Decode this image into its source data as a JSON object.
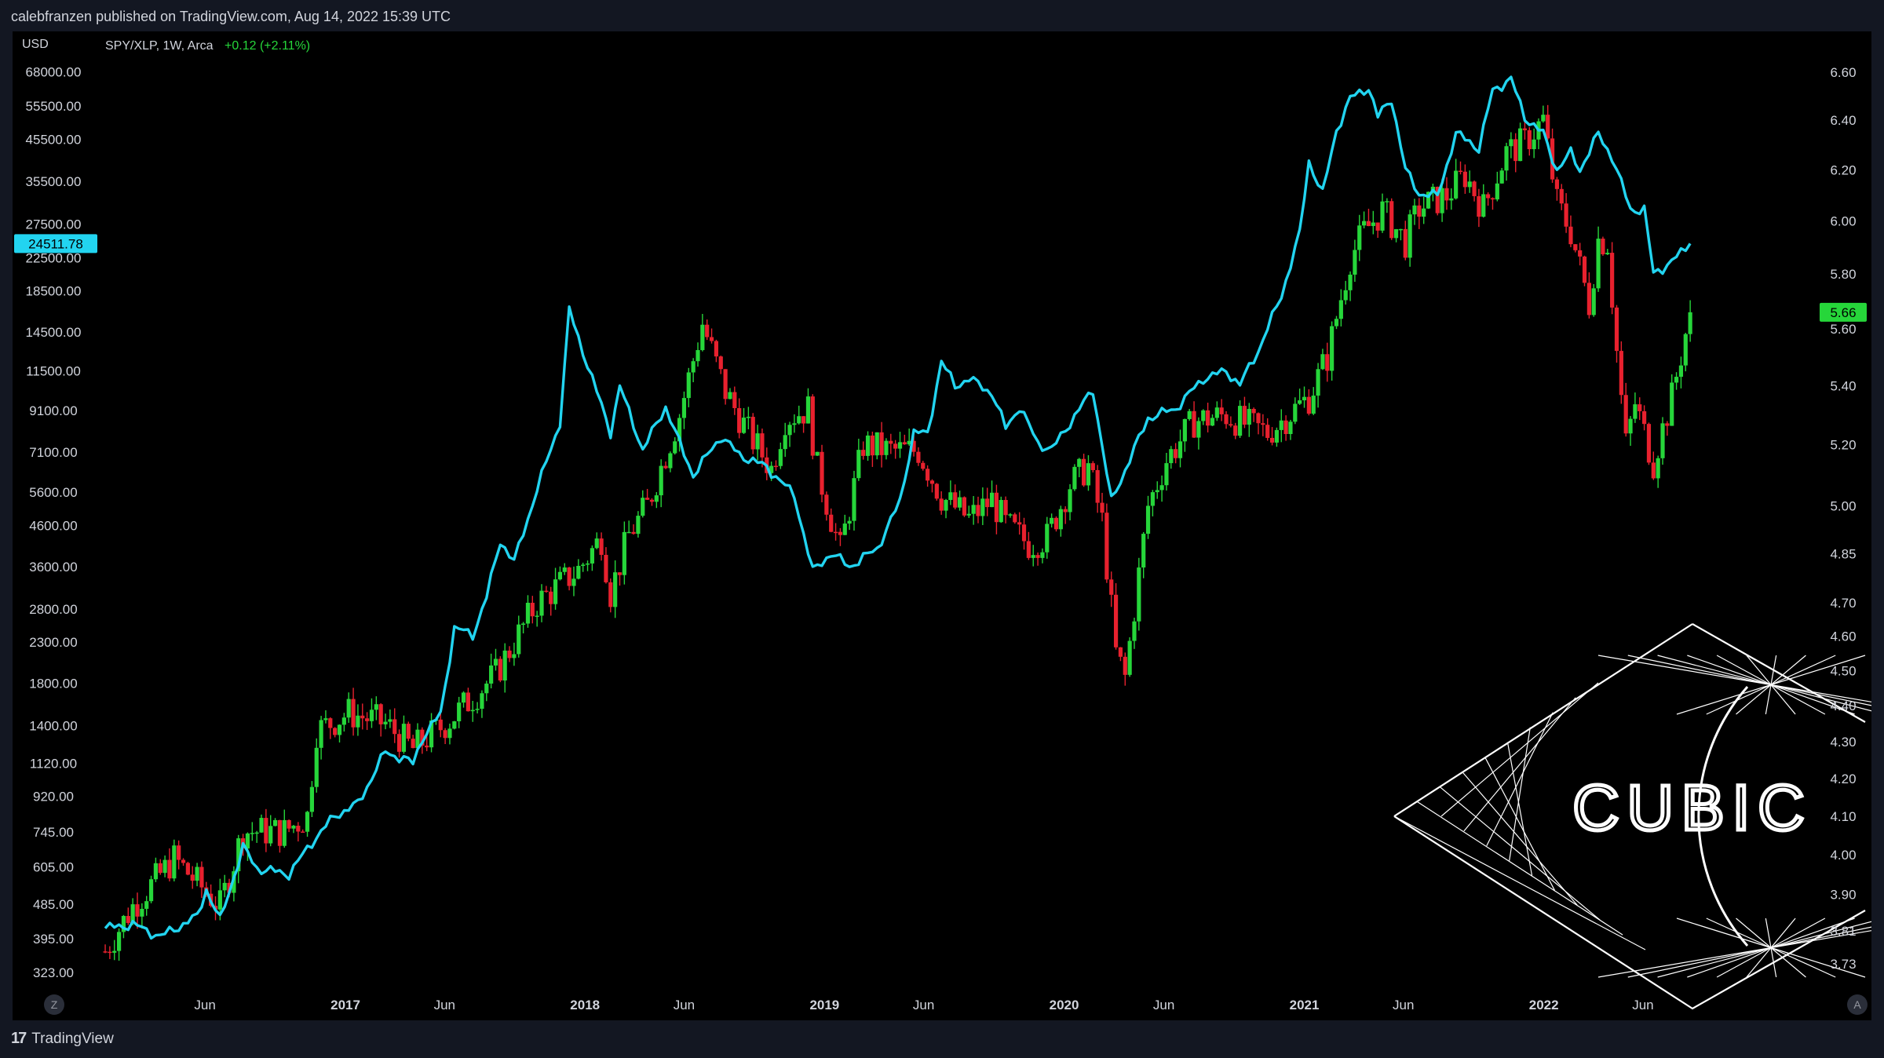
{
  "header": {
    "published": "calebfranzen published on TradingView.com, Aug 14, 2022 15:39 UTC"
  },
  "legend": {
    "symbol": "SPY/XLP, 1W, Arca",
    "change": "+0.12 (+2.11%)"
  },
  "left_axis": {
    "unit": "USD",
    "current_label": "24511.78",
    "ticks": [
      "68000.00",
      "55500.00",
      "45500.00",
      "35500.00",
      "27500.00",
      "22500.00",
      "18500.00",
      "14500.00",
      "11500.00",
      "9100.00",
      "7100.00",
      "5600.00",
      "4600.00",
      "3600.00",
      "2800.00",
      "2300.00",
      "1800.00",
      "1400.00",
      "1120.00",
      "920.00",
      "745.00",
      "605.00",
      "485.00",
      "395.00",
      "323.00"
    ]
  },
  "right_axis": {
    "current_label": "5.66",
    "ticks": [
      "6.60",
      "6.40",
      "6.20",
      "6.00",
      "5.80",
      "5.60",
      "5.40",
      "5.20",
      "5.00",
      "4.85",
      "4.70",
      "4.60",
      "4.50",
      "4.40",
      "4.30",
      "4.20",
      "4.10",
      "4.00",
      "3.90",
      "3.81",
      "3.73"
    ]
  },
  "time_axis": {
    "labels": [
      {
        "text": "Jun",
        "bold": false
      },
      {
        "text": "2017",
        "bold": true
      },
      {
        "text": "Jun",
        "bold": false
      },
      {
        "text": "2018",
        "bold": true
      },
      {
        "text": "Jun",
        "bold": false
      },
      {
        "text": "2019",
        "bold": true
      },
      {
        "text": "Jun",
        "bold": false
      },
      {
        "text": "2020",
        "bold": true
      },
      {
        "text": "Jun",
        "bold": false
      },
      {
        "text": "2021",
        "bold": true
      },
      {
        "text": "Jun",
        "bold": false
      },
      {
        "text": "2022",
        "bold": true
      },
      {
        "text": "Jun",
        "bold": false
      }
    ]
  },
  "watermark": {
    "text": "CUBIC"
  },
  "footer": {
    "logo_mark": "17",
    "logo_text": "TradingView"
  },
  "corner_buttons": {
    "left": "Z",
    "right": "A"
  },
  "colors": {
    "up": "#26d63a",
    "down": "#e8212e",
    "overlay": "#22d4f0",
    "background": "#000000"
  },
  "chart_data": {
    "type": "candlestick+line",
    "ratio_series": {
      "name": "SPY/XLP",
      "interval": "1W",
      "scale": "log",
      "anchors": [
        [
          "2016-01-01",
          3.76
        ],
        [
          "2016-02-12",
          3.87
        ],
        [
          "2016-04-15",
          3.99
        ],
        [
          "2016-06-24",
          3.87
        ],
        [
          "2016-07-29",
          4.06
        ],
        [
          "2016-09-30",
          4.06
        ],
        [
          "2016-11-04",
          4.1
        ],
        [
          "2016-11-18",
          4.33
        ],
        [
          "2017-01-06",
          4.38
        ],
        [
          "2017-03-03",
          4.35
        ],
        [
          "2017-04-14",
          4.28
        ],
        [
          "2017-06-09",
          4.36
        ],
        [
          "2017-08-18",
          4.49
        ],
        [
          "2017-10-20",
          4.7
        ],
        [
          "2017-12-22",
          4.8
        ],
        [
          "2018-01-26",
          4.9
        ],
        [
          "2018-02-09",
          4.73
        ],
        [
          "2018-03-09",
          4.91
        ],
        [
          "2018-04-06",
          5.0
        ],
        [
          "2018-05-25",
          5.3
        ],
        [
          "2018-06-29",
          5.62
        ],
        [
          "2018-08-03",
          5.38
        ],
        [
          "2018-09-07",
          5.24
        ],
        [
          "2018-10-12",
          5.12
        ],
        [
          "2018-11-02",
          5.29
        ],
        [
          "2018-12-07",
          5.32
        ],
        [
          "2018-12-21",
          5.12
        ],
        [
          "2019-01-25",
          4.86
        ],
        [
          "2019-03-01",
          5.2
        ],
        [
          "2019-04-12",
          5.18
        ],
        [
          "2019-05-24",
          5.18
        ],
        [
          "2019-06-28",
          5.03
        ],
        [
          "2019-08-09",
          4.96
        ],
        [
          "2019-09-13",
          5.02
        ],
        [
          "2019-10-04",
          4.94
        ],
        [
          "2019-11-08",
          4.88
        ],
        [
          "2019-12-06",
          4.9
        ],
        [
          "2020-01-10",
          5.07
        ],
        [
          "2020-02-07",
          5.13
        ],
        [
          "2020-02-28",
          4.95
        ],
        [
          "2020-03-20",
          4.55
        ],
        [
          "2020-04-03",
          4.48
        ],
        [
          "2020-05-08",
          5.0
        ],
        [
          "2020-06-05",
          5.15
        ],
        [
          "2020-07-17",
          5.28
        ],
        [
          "2020-09-04",
          5.3
        ],
        [
          "2020-10-02",
          5.27
        ],
        [
          "2020-11-06",
          5.24
        ],
        [
          "2021-01-08",
          5.36
        ],
        [
          "2021-02-05",
          5.5
        ],
        [
          "2021-03-12",
          5.86
        ],
        [
          "2021-04-02",
          5.96
        ],
        [
          "2021-04-30",
          6.04
        ],
        [
          "2021-06-04",
          5.92
        ],
        [
          "2021-06-25",
          6.05
        ],
        [
          "2021-08-06",
          6.1
        ],
        [
          "2021-09-03",
          6.18
        ],
        [
          "2021-10-01",
          6.05
        ],
        [
          "2021-11-05",
          6.27
        ],
        [
          "2021-12-03",
          6.31
        ],
        [
          "2021-12-31",
          6.4
        ],
        [
          "2022-01-21",
          6.07
        ],
        [
          "2022-02-11",
          5.96
        ],
        [
          "2022-03-11",
          5.69
        ],
        [
          "2022-03-25",
          5.93
        ],
        [
          "2022-04-08",
          5.92
        ],
        [
          "2022-04-22",
          5.52
        ],
        [
          "2022-05-06",
          5.2
        ],
        [
          "2022-05-20",
          5.34
        ],
        [
          "2022-06-17",
          5.14
        ],
        [
          "2022-06-24",
          5.2
        ],
        [
          "2022-07-15",
          5.36
        ],
        [
          "2022-08-12",
          5.66
        ]
      ]
    },
    "overlay_series": {
      "color": "#22d4f0",
      "scale": "log",
      "anchors": [
        [
          "2016-01-01",
          420
        ],
        [
          "2016-02-12",
          430
        ],
        [
          "2016-03-25",
          400
        ],
        [
          "2016-05-20",
          450
        ],
        [
          "2016-06-03",
          530
        ],
        [
          "2016-06-24",
          440
        ],
        [
          "2016-07-29",
          680
        ],
        [
          "2016-08-19",
          600
        ],
        [
          "2016-10-07",
          580
        ],
        [
          "2016-11-11",
          700
        ],
        [
          "2016-12-16",
          820
        ],
        [
          "2017-01-20",
          880
        ],
        [
          "2017-03-03",
          1200
        ],
        [
          "2017-04-14",
          1120
        ],
        [
          "2017-04-28",
          1300
        ],
        [
          "2017-05-26",
          1500
        ],
        [
          "2017-06-16",
          2500
        ],
        [
          "2017-07-14",
          2400
        ],
        [
          "2017-08-04",
          3000
        ],
        [
          "2017-08-25",
          4200
        ],
        [
          "2017-09-15",
          3700
        ],
        [
          "2017-10-20",
          5700
        ],
        [
          "2017-11-24",
          8500
        ],
        [
          "2017-12-08",
          16500
        ],
        [
          "2017-12-22",
          14000
        ],
        [
          "2018-01-12",
          11000
        ],
        [
          "2018-02-09",
          8000
        ],
        [
          "2018-02-23",
          10500
        ],
        [
          "2018-03-30",
          7200
        ],
        [
          "2018-05-04",
          9300
        ],
        [
          "2018-05-25",
          7500
        ],
        [
          "2018-06-15",
          6200
        ],
        [
          "2018-07-27",
          7800
        ],
        [
          "2018-08-24",
          7000
        ],
        [
          "2018-10-05",
          6500
        ],
        [
          "2018-11-16",
          5500
        ],
        [
          "2018-12-14",
          3500
        ],
        [
          "2019-01-11",
          3900
        ],
        [
          "2019-02-08",
          3600
        ],
        [
          "2019-03-22",
          4000
        ],
        [
          "2019-04-26",
          5300
        ],
        [
          "2019-05-17",
          8000
        ],
        [
          "2019-06-07",
          7900
        ],
        [
          "2019-06-28",
          12200
        ],
        [
          "2019-07-19",
          10500
        ],
        [
          "2019-08-09",
          11000
        ],
        [
          "2019-09-13",
          10100
        ],
        [
          "2019-10-04",
          8200
        ],
        [
          "2019-10-25",
          9300
        ],
        [
          "2019-11-22",
          7500
        ],
        [
          "2019-12-13",
          7200
        ],
        [
          "2020-01-17",
          8800
        ],
        [
          "2020-02-14",
          10300
        ],
        [
          "2020-03-13",
          5300
        ],
        [
          "2020-04-10",
          6800
        ],
        [
          "2020-05-08",
          8700
        ],
        [
          "2020-06-19",
          9200
        ],
        [
          "2020-07-31",
          11000
        ],
        [
          "2020-09-04",
          11500
        ],
        [
          "2020-09-25",
          10600
        ],
        [
          "2020-10-23",
          13000
        ],
        [
          "2020-11-27",
          18000
        ],
        [
          "2020-12-25",
          26000
        ],
        [
          "2021-01-08",
          40000
        ],
        [
          "2021-01-29",
          33000
        ],
        [
          "2021-02-19",
          48000
        ],
        [
          "2021-03-12",
          58000
        ],
        [
          "2021-04-09",
          62000
        ],
        [
          "2021-04-23",
          52000
        ],
        [
          "2021-05-14",
          58000
        ],
        [
          "2021-06-04",
          38000
        ],
        [
          "2021-06-25",
          33000
        ],
        [
          "2021-07-23",
          32500
        ],
        [
          "2021-08-20",
          47000
        ],
        [
          "2021-09-10",
          45000
        ],
        [
          "2021-09-24",
          43000
        ],
        [
          "2021-10-15",
          61000
        ],
        [
          "2021-11-12",
          65000
        ],
        [
          "2021-12-03",
          52000
        ],
        [
          "2021-12-31",
          47000
        ],
        [
          "2022-01-21",
          38000
        ],
        [
          "2022-02-11",
          42000
        ],
        [
          "2022-02-25",
          38000
        ],
        [
          "2022-03-25",
          47000
        ],
        [
          "2022-04-15",
          41000
        ],
        [
          "2022-05-13",
          30000
        ],
        [
          "2022-06-03",
          30000
        ],
        [
          "2022-06-17",
          20500
        ],
        [
          "2022-07-15",
          22000
        ],
        [
          "2022-08-12",
          24511.78
        ]
      ]
    },
    "x_range": [
      "2015-12-20",
      "2022-12-25"
    ],
    "left_ylim": [
      300,
      78000
    ],
    "right_ylim": [
      3.68,
      6.7
    ],
    "grid": false,
    "legend": "top-left"
  }
}
